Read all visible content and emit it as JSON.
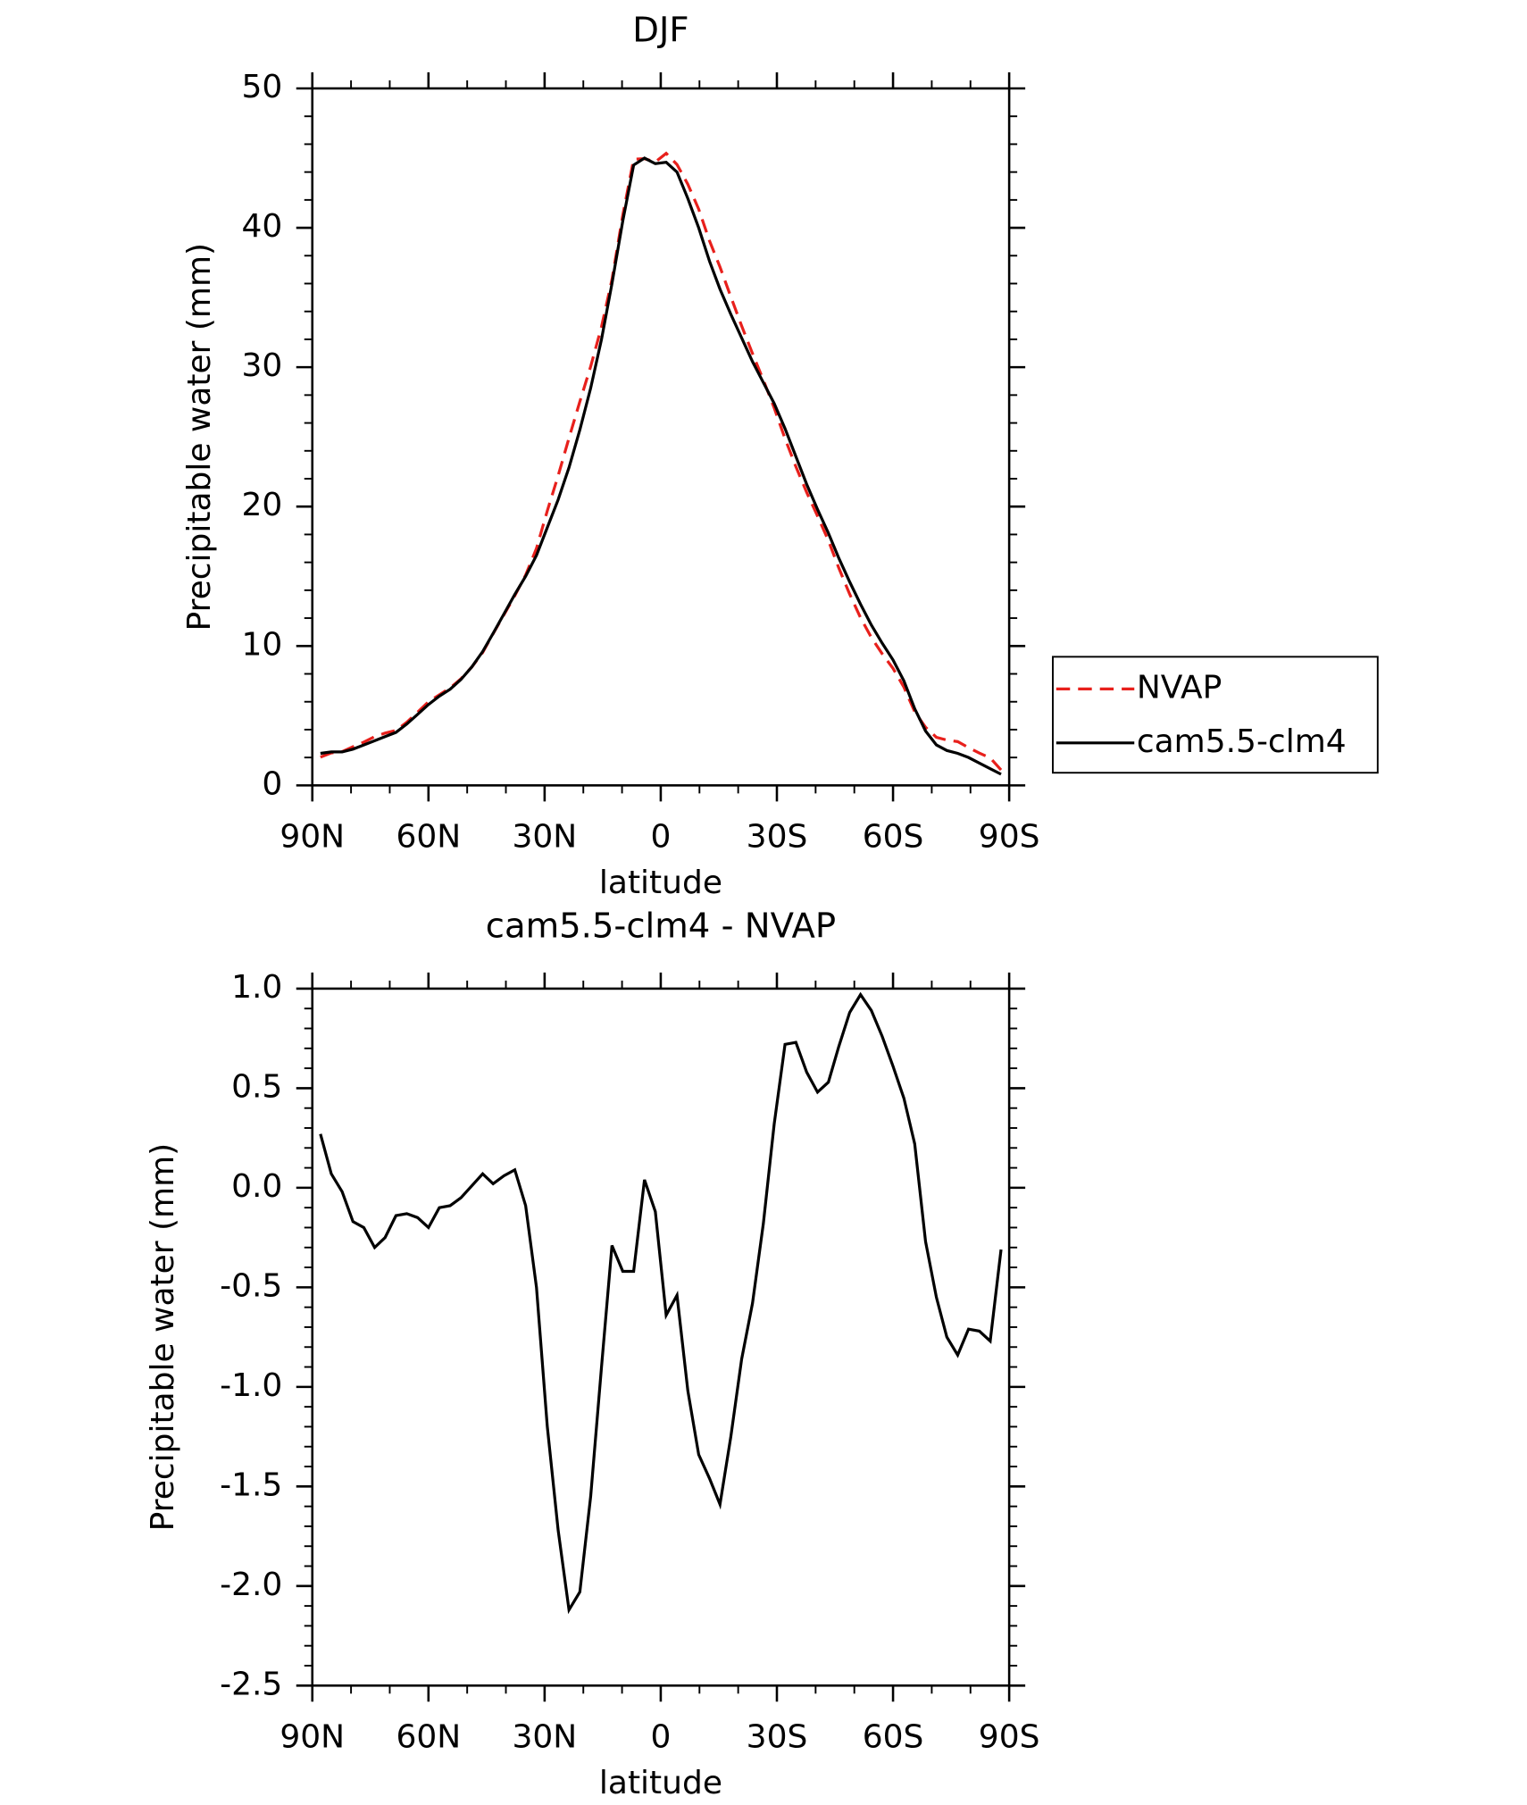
{
  "chart_data": [
    {
      "type": "line",
      "title": "DJF",
      "xlabel": "latitude",
      "ylabel": "Precipitable water (mm)",
      "x": [
        87.9,
        85.1,
        82.3,
        79.5,
        76.7,
        73.9,
        71.2,
        68.4,
        65.6,
        62.8,
        60.0,
        57.2,
        54.4,
        51.6,
        48.8,
        46.0,
        43.3,
        40.5,
        37.7,
        34.9,
        32.1,
        29.3,
        26.5,
        23.7,
        20.9,
        18.1,
        15.3,
        12.6,
        9.8,
        7.0,
        4.2,
        1.4,
        -1.4,
        -4.2,
        -7.0,
        -9.8,
        -12.6,
        -15.3,
        -18.1,
        -20.9,
        -23.7,
        -26.5,
        -29.3,
        -32.1,
        -34.9,
        -37.7,
        -40.5,
        -43.3,
        -46.0,
        -48.8,
        -51.6,
        -54.4,
        -57.2,
        -60.0,
        -62.8,
        -65.6,
        -68.4,
        -71.2,
        -73.9,
        -76.7,
        -79.5,
        -82.3,
        -85.1,
        -87.9
      ],
      "series": [
        {
          "name": "NVAP",
          "color": "#e8201c",
          "dash": true,
          "values": [
            2.03,
            2.33,
            2.42,
            2.77,
            3.1,
            3.5,
            3.75,
            3.94,
            4.53,
            5.25,
            6.0,
            6.5,
            6.99,
            7.65,
            8.49,
            9.53,
            10.88,
            12.24,
            13.61,
            15.09,
            17.0,
            19.7,
            22.22,
            24.92,
            27.53,
            30.05,
            32.9,
            36.29,
            40.92,
            44.92,
            44.96,
            44.72,
            45.34,
            44.54,
            43.12,
            41.34,
            39.06,
            37.19,
            35.05,
            32.96,
            30.98,
            29.08,
            27.08,
            24.88,
            22.87,
            21.02,
            19.32,
            17.57,
            15.59,
            13.72,
            12.03,
            10.61,
            9.44,
            8.39,
            7.05,
            5.28,
            4.17,
            3.45,
            3.25,
            3.14,
            2.71,
            2.32,
            1.97,
            1.11
          ]
        },
        {
          "name": "cam5.5-clm4",
          "color": "#000000",
          "dash": false,
          "values": [
            2.3,
            2.4,
            2.4,
            2.6,
            2.9,
            3.2,
            3.5,
            3.8,
            4.4,
            5.1,
            5.8,
            6.4,
            6.9,
            7.6,
            8.5,
            9.6,
            10.9,
            12.3,
            13.7,
            15.0,
            16.5,
            18.5,
            20.5,
            22.8,
            25.5,
            28.5,
            32.0,
            36.0,
            40.5,
            44.5,
            45.0,
            44.6,
            44.7,
            44.0,
            42.1,
            40.0,
            37.6,
            35.6,
            33.8,
            32.1,
            30.4,
            28.9,
            27.4,
            25.6,
            23.6,
            21.6,
            19.8,
            18.1,
            16.3,
            14.6,
            13.0,
            11.5,
            10.2,
            9.0,
            7.5,
            5.5,
            3.9,
            2.9,
            2.5,
            2.3,
            2.0,
            1.6,
            1.2,
            0.8
          ]
        }
      ],
      "xlim": [
        90,
        -90
      ],
      "xticks": [
        {
          "value": 90,
          "label": "90N"
        },
        {
          "value": 60,
          "label": "60N"
        },
        {
          "value": 30,
          "label": "30N"
        },
        0,
        {
          "value": -30,
          "label": "30S"
        },
        {
          "value": -60,
          "label": "60S"
        },
        {
          "value": -90,
          "label": "90S"
        }
      ],
      "ylim": [
        0,
        50
      ],
      "yticks": [
        0,
        10,
        20,
        30,
        40,
        50
      ],
      "legend": "right"
    },
    {
      "type": "line",
      "title": "cam5.5-clm4 - NVAP",
      "xlabel": "latitude",
      "ylabel": "Precipitable water (mm)",
      "x": [
        87.9,
        85.1,
        82.3,
        79.5,
        76.7,
        73.9,
        71.2,
        68.4,
        65.6,
        62.8,
        60.0,
        57.2,
        54.4,
        51.6,
        48.8,
        46.0,
        43.3,
        40.5,
        37.7,
        34.9,
        32.1,
        29.3,
        26.5,
        23.7,
        20.9,
        18.1,
        15.3,
        12.6,
        9.8,
        7.0,
        4.2,
        1.4,
        -1.4,
        -4.2,
        -7.0,
        -9.8,
        -12.6,
        -15.3,
        -18.1,
        -20.9,
        -23.7,
        -26.5,
        -29.3,
        -32.1,
        -34.9,
        -37.7,
        -40.5,
        -43.3,
        -46.0,
        -48.8,
        -51.6,
        -54.4,
        -57.2,
        -60.0,
        -62.8,
        -65.6,
        -68.4,
        -71.2,
        -73.9,
        -76.7,
        -79.5,
        -82.3,
        -85.1,
        -87.9
      ],
      "series": [
        {
          "color": "#000000",
          "dash": false,
          "values": [
            0.27,
            0.07,
            -0.02,
            -0.17,
            -0.2,
            -0.3,
            -0.25,
            -0.14,
            -0.13,
            -0.15,
            -0.2,
            -0.1,
            -0.09,
            -0.05,
            0.01,
            0.07,
            0.02,
            0.06,
            0.09,
            -0.09,
            -0.5,
            -1.2,
            -1.72,
            -2.12,
            -2.03,
            -1.55,
            -0.9,
            -0.29,
            -0.42,
            -0.42,
            0.04,
            -0.12,
            -0.64,
            -0.54,
            -1.02,
            -1.34,
            -1.46,
            -1.59,
            -1.25,
            -0.86,
            -0.58,
            -0.18,
            0.32,
            0.72,
            0.73,
            0.58,
            0.48,
            0.53,
            0.71,
            0.88,
            0.97,
            0.89,
            0.76,
            0.61,
            0.45,
            0.22,
            -0.27,
            -0.55,
            -0.75,
            -0.84,
            -0.71,
            -0.72,
            -0.77,
            -0.31
          ]
        }
      ],
      "xlim": [
        90,
        -90
      ],
      "xticks": [
        {
          "value": 90,
          "label": "90N"
        },
        {
          "value": 60,
          "label": "60N"
        },
        {
          "value": 30,
          "label": "30N"
        },
        0,
        {
          "value": -30,
          "label": "30S"
        },
        {
          "value": -60,
          "label": "60S"
        },
        {
          "value": -90,
          "label": "90S"
        }
      ],
      "ylim": [
        -2.5,
        1
      ],
      "yticks": [
        {
          "value": 1,
          "label": "1.0"
        },
        {
          "value": 0.5,
          "label": "0.5"
        },
        {
          "value": 0,
          "label": "0.0"
        },
        {
          "value": -0.5,
          "label": "-0.5"
        },
        {
          "value": -1,
          "label": "-1.0"
        },
        {
          "value": -1.5,
          "label": "-1.5"
        },
        {
          "value": -2,
          "label": "-2.0"
        },
        {
          "value": -2.5,
          "label": "-2.5"
        }
      ]
    }
  ]
}
